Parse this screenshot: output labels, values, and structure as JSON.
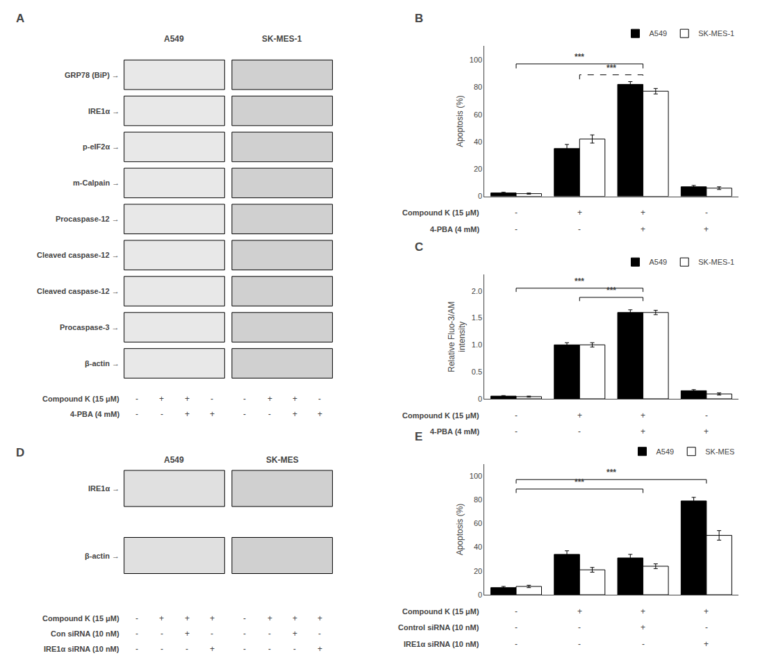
{
  "chart_data": [
    {
      "type": "blot",
      "title": "A",
      "series": [
        {
          "name": "A549",
          "color": "#e8e8e8"
        },
        {
          "name": "SK-MES-1",
          "color": "#d0d0d0"
        }
      ],
      "categories": [
        "GRP78 (BiP) →",
        "IRE1α →",
        "p-eIF2α →",
        "m-Calpain →",
        "Procaspase-12 →",
        "Cleaved caspase-12 →",
        "Cleaved caspase-12 →",
        "Procaspase-3 →",
        "β-actin →"
      ],
      "annotations": [
        {
          "text": "Compound K (15 μM)",
          "values": [
            "-",
            "+",
            "+",
            "-"
          ]
        },
        {
          "text": "4-PBA (4 mM)",
          "values": [
            "-",
            "-",
            "+",
            "+"
          ]
        }
      ]
    },
    {
      "type": "bar",
      "title": "B",
      "categories": [
        null,
        null,
        null,
        null
      ],
      "series": [
        {
          "name": "A549",
          "color": "#000000",
          "values": [
            2.5,
            35,
            82,
            7
          ],
          "errors": [
            0.5,
            3,
            2,
            1
          ]
        },
        {
          "name": "SK-MES-1",
          "color": "#ffffff",
          "values": [
            2.0,
            42,
            77,
            6
          ],
          "errors": [
            0.4,
            3,
            2,
            1
          ]
        }
      ],
      "ylabel": "Apoptosis (%)",
      "ylim": [
        0,
        110
      ],
      "yticks": [
        0,
        20,
        40,
        60,
        80,
        100
      ],
      "grid": false,
      "legend": "top",
      "tick_labels": "y",
      "annotations": [
        {
          "text": "Compound K (15 μM)",
          "values": [
            "-",
            "+",
            "+",
            "-"
          ]
        },
        {
          "text": "4-PBA (4 mM)",
          "values": [
            "-",
            "-",
            "+",
            "+"
          ]
        },
        {
          "text": "***",
          "x1": 1,
          "x2": 3,
          "y": 97,
          "line_style": "solid"
        },
        {
          "text": "***",
          "x1": 2,
          "x2": 3,
          "y": 89,
          "line_style": "dashed"
        }
      ]
    },
    {
      "type": "bar",
      "title": "C",
      "categories": [
        null,
        null,
        null,
        null
      ],
      "series": [
        {
          "name": "A549",
          "color": "#000000",
          "values": [
            0.05,
            1.0,
            1.6,
            0.15
          ],
          "errors": [
            0.01,
            0.04,
            0.05,
            0.02
          ]
        },
        {
          "name": "SK-MES-1",
          "color": "#ffffff",
          "values": [
            0.04,
            1.0,
            1.6,
            0.09
          ],
          "errors": [
            0.01,
            0.04,
            0.04,
            0.02
          ]
        }
      ],
      "ylabel": "Relative Fluo-3/AM\nintensity",
      "ylim": [
        0,
        2.3
      ],
      "yticks": [
        0,
        0.5,
        {
          "value": 1.0,
          "label": "1.0"
        },
        1.5,
        {
          "value": 2.0,
          "label": "2.0"
        }
      ],
      "grid": false,
      "legend": "top",
      "tick_labels": "y",
      "annotations": [
        {
          "text": "Compound K (15 μM)",
          "values": [
            "-",
            "+",
            "+",
            "-"
          ]
        },
        {
          "text": "4-PBA (4 mM)",
          "values": [
            "-",
            "-",
            "+",
            "+"
          ]
        },
        {
          "text": "***",
          "x1": 1,
          "x2": 3,
          "y": 2.05,
          "line_style": "solid"
        },
        {
          "text": "***",
          "x1": 2,
          "x2": 3,
          "y": 1.88,
          "line_style": "solid"
        }
      ]
    },
    {
      "type": "blot",
      "title": "D",
      "series": [
        {
          "name": "A549",
          "color": "#e0e0e0"
        },
        {
          "name": "SK-MES",
          "color": "#d0d0d0"
        }
      ],
      "categories": [
        "IRE1α →",
        "β-actin →"
      ],
      "annotations": [
        {
          "text": "Compound K (15 μM)",
          "values": [
            "-",
            "+",
            "+",
            "+"
          ]
        },
        {
          "text": "Con siRNA (10 nM)",
          "values": [
            "-",
            "-",
            "+",
            "-"
          ]
        },
        {
          "text": "IRE1α siRNA (10 nM)",
          "values": [
            "-",
            "-",
            "-",
            "+"
          ]
        }
      ]
    },
    {
      "type": "bar",
      "title": "E",
      "categories": [
        null,
        null,
        null,
        null
      ],
      "series": [
        {
          "name": "A549",
          "color": "#000000",
          "values": [
            6,
            34,
            31,
            79
          ],
          "errors": [
            1,
            3,
            3,
            3
          ]
        },
        {
          "name": "SK-MES",
          "color": "#ffffff",
          "values": [
            7,
            21,
            24,
            50
          ],
          "errors": [
            1,
            2,
            2,
            4
          ]
        }
      ],
      "ylabel": "Apoptosis (%)",
      "ylim": [
        0,
        110
      ],
      "yticks": [
        0,
        20,
        40,
        60,
        80,
        100
      ],
      "grid": false,
      "legend": "top",
      "tick_labels": "y",
      "annotations": [
        {
          "text": "Compound K (15 μM)",
          "values": [
            "-",
            "+",
            "+",
            "+"
          ]
        },
        {
          "text": "Control siRNA (10 nM)",
          "values": [
            "-",
            "-",
            "+",
            "-"
          ]
        },
        {
          "text": "IRE1α siRNA (10 nM)",
          "values": [
            "-",
            "-",
            "-",
            "+"
          ]
        },
        {
          "text": "***",
          "x1": 1,
          "x2": 4,
          "y": 97,
          "line_style": "solid"
        },
        {
          "text": "***",
          "x1": 1,
          "x2": 3,
          "y": 89,
          "line_style": "solid"
        }
      ]
    }
  ]
}
